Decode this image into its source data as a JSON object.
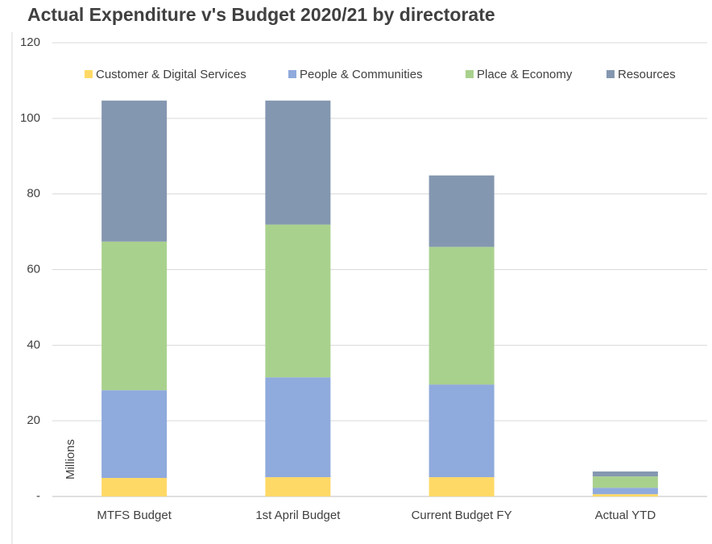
{
  "chart_data": {
    "type": "stacked_bar",
    "title": "Actual Expenditure v's Budget 2020/21 by directorate",
    "y_label": "Millions",
    "categories": [
      "MTFS Budget",
      "1st April Budget",
      "Current Budget FY",
      "Actual YTD"
    ],
    "series": [
      {
        "name": "Customer & Digital Services",
        "color": "#ffd966",
        "values": [
          4.9,
          5.1,
          5.1,
          0.6
        ]
      },
      {
        "name": "People & Communities",
        "color": "#8faadc",
        "values": [
          23.2,
          26.4,
          24.5,
          1.7
        ]
      },
      {
        "name": "Place & Economy",
        "color": "#a9d18e",
        "values": [
          39.3,
          40.4,
          36.4,
          3.0
        ]
      },
      {
        "name": "Resources",
        "color": "#8497b0",
        "values": [
          37.3,
          32.8,
          18.9,
          1.3
        ]
      }
    ],
    "ylim": [
      0,
      120
    ],
    "yticks": [
      {
        "value": 0,
        "label": "-"
      },
      20,
      40,
      60,
      80,
      100,
      120
    ],
    "grid": true,
    "legend": "top"
  }
}
